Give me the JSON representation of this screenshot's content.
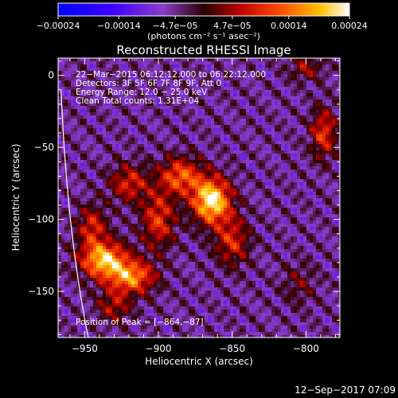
{
  "chart_data": {
    "type": "heatmap",
    "title": "Reconstructed RHESSI Image",
    "xlabel": "Heliocentric X (arcsec)",
    "ylabel": "Heliocentric Y (arcsec)",
    "xlim": [
      -968,
      -777
    ],
    "ylim": [
      -182,
      12
    ],
    "x_ticks": [
      -950,
      -900,
      -850,
      -800
    ],
    "x_tick_labels": [
      "−950",
      "−900",
      "−850",
      "−800"
    ],
    "y_ticks": [
      0,
      -50,
      -100,
      -150
    ],
    "y_tick_labels": [
      "0",
      "−50",
      "−100",
      "−150"
    ],
    "colorbar": {
      "range": [
        -0.00024,
        0.00024
      ],
      "ticks": [
        -0.00024,
        -0.00014,
        -4.7e-05,
        4.7e-05,
        0.00014,
        0.00024
      ],
      "tick_labels": [
        "−0.00024",
        "−0.00014",
        "−4.7e−05",
        "4.7e−05",
        "0.00014",
        "0.00024"
      ],
      "unit_label": "(photons cm⁻² s⁻¹ asec⁻²)"
    },
    "annotations": [
      "22−Mar−2015 06:12:12.000 to 06:22:12.000",
      "Detectors: 3F 5F 6F 7F 8F 9F, Att 0",
      "Energy Range: 12.0 − 25.0 keV",
      "Clean     Total counts: 1.31E+04"
    ],
    "peak_label": "Position of Peak = [−864,−87]",
    "peak": [
      -864,
      -87
    ],
    "sources": [
      {
        "x": -864,
        "y": -87,
        "sx": 9,
        "sy": 11,
        "amp": 1.0
      },
      {
        "x": -885,
        "y": -70,
        "sx": 10,
        "sy": 9,
        "amp": 0.6
      },
      {
        "x": -900,
        "y": -100,
        "sx": 8,
        "sy": 14,
        "amp": 0.5
      },
      {
        "x": -920,
        "y": -75,
        "sx": 9,
        "sy": 9,
        "amp": 0.45
      },
      {
        "x": -937,
        "y": -128,
        "sx": 11,
        "sy": 9,
        "amp": 0.85
      },
      {
        "x": -918,
        "y": -140,
        "sx": 11,
        "sy": 8,
        "amp": 0.7
      },
      {
        "x": -945,
        "y": -105,
        "sx": 7,
        "sy": 10,
        "amp": 0.45
      },
      {
        "x": -850,
        "y": -115,
        "sx": 8,
        "sy": 12,
        "amp": 0.45
      },
      {
        "x": -930,
        "y": -160,
        "sx": 8,
        "sy": 8,
        "amp": 0.35
      },
      {
        "x": -788,
        "y": -40,
        "sx": 6,
        "sy": 12,
        "amp": 0.5
      },
      {
        "x": -805,
        "y": -145,
        "sx": 8,
        "sy": 10,
        "amp": 0.2
      },
      {
        "x": -800,
        "y": 5,
        "sx": 8,
        "sy": 6,
        "amp": 0.3
      }
    ]
  },
  "footer": {
    "timestamp": "12−Sep−2017 07:09"
  }
}
